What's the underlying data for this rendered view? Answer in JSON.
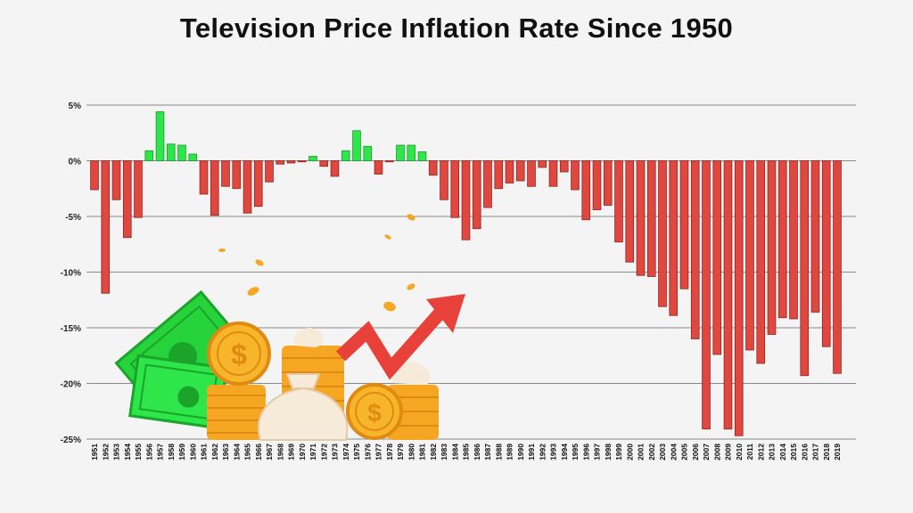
{
  "chart_data": {
    "type": "bar",
    "title": "Television Price Inflation Rate Since 1950",
    "xlabel": "",
    "ylabel": "",
    "ylim": [
      -25,
      5
    ],
    "yticks": [
      5,
      0,
      -5,
      -10,
      -15,
      -20,
      -25
    ],
    "ytick_labels": [
      "5%",
      "0%",
      "-5%",
      "-10%",
      "-15%",
      "-20%",
      "-25%"
    ],
    "grid": true,
    "colors": {
      "positive": "#2ee54a",
      "negative": "#e0473f",
      "grid": "#8a8a8a"
    },
    "categories": [
      "1951",
      "1952",
      "1953",
      "1954",
      "1955",
      "1956",
      "1957",
      "1958",
      "1959",
      "1960",
      "1961",
      "1962",
      "1963",
      "1964",
      "1965",
      "1966",
      "1967",
      "1968",
      "1969",
      "1970",
      "1971",
      "1972",
      "1973",
      "1974",
      "1975",
      "1976",
      "1977",
      "1978",
      "1979",
      "1980",
      "1981",
      "1982",
      "1983",
      "1984",
      "1985",
      "1986",
      "1987",
      "1988",
      "1989",
      "1990",
      "1991",
      "1992",
      "1993",
      "1994",
      "1995",
      "1996",
      "1997",
      "1998",
      "1999",
      "2000",
      "2001",
      "2002",
      "2003",
      "2004",
      "2005",
      "2006",
      "2007",
      "2008",
      "2009",
      "2010",
      "2011",
      "2012",
      "2013",
      "2014",
      "2015",
      "2016",
      "2017",
      "2018",
      "2019"
    ],
    "values": [
      -2.6,
      -11.9,
      -3.5,
      -6.9,
      -5.1,
      0.9,
      4.4,
      1.5,
      1.4,
      0.6,
      -3.0,
      -4.9,
      -2.3,
      -2.5,
      -4.7,
      -4.1,
      -1.9,
      -0.3,
      -0.2,
      -0.1,
      0.4,
      -0.5,
      -1.4,
      0.9,
      2.7,
      1.3,
      -1.2,
      -0.1,
      1.4,
      1.4,
      0.8,
      -1.3,
      -3.5,
      -5.1,
      -7.1,
      -6.1,
      -4.2,
      -2.5,
      -2.0,
      -1.8,
      -2.3,
      -0.6,
      -2.3,
      -1.0,
      -2.6,
      -5.3,
      -4.4,
      -4.0,
      -7.3,
      -9.1,
      -10.3,
      -10.4,
      -13.1,
      -13.9,
      -11.5,
      -16.0,
      -24.1,
      -17.4,
      -24.1,
      -24.7,
      -17.0,
      -18.2,
      -15.6,
      -14.1,
      -14.2,
      -19.3,
      -13.6,
      -16.7,
      -19.1
    ]
  }
}
